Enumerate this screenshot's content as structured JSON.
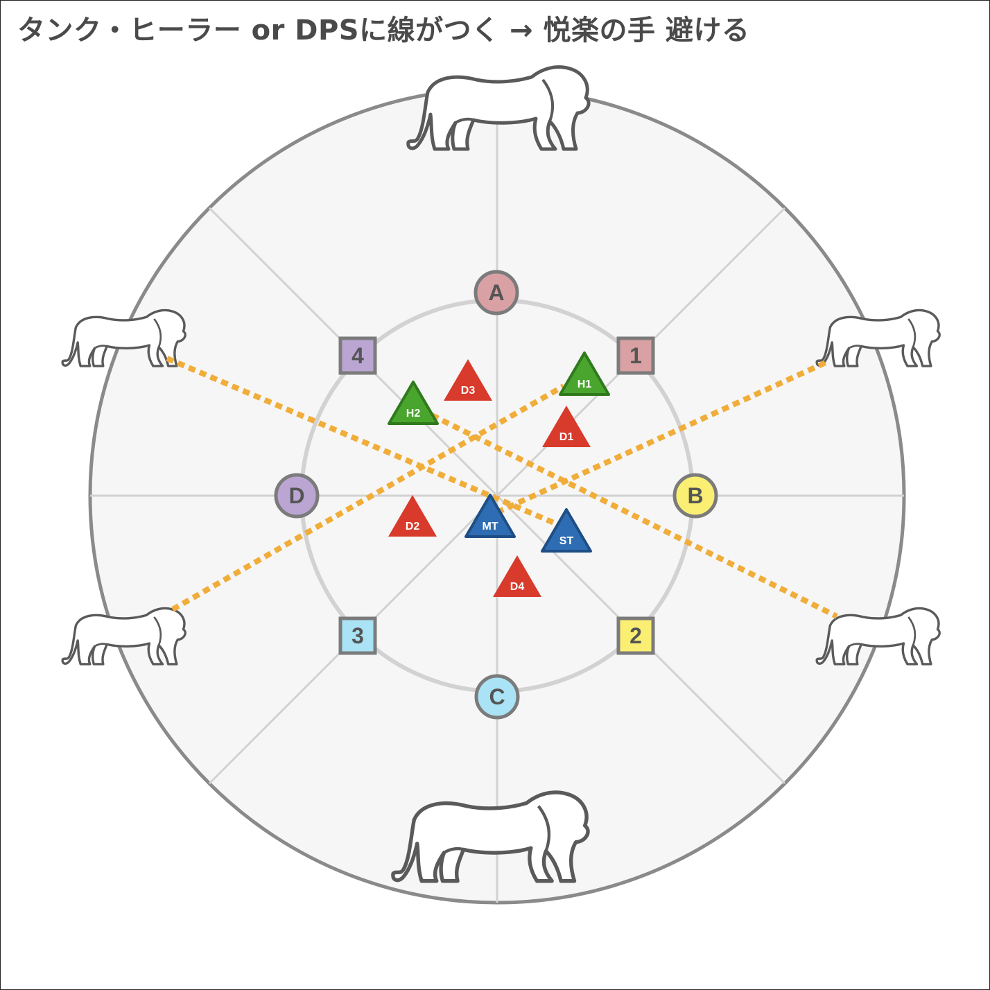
{
  "title": "タンク・ヒーラー or DPSに線がつく → 悦楽の手 避ける",
  "colors": {
    "tether": "#f0ad3a",
    "dps": "#d83a2b",
    "healer": "#4aa52e",
    "tank": "#2e6db3",
    "arena_fill": "#f6f6f6",
    "arena_border": "#8a8a8a"
  },
  "waymarks": {
    "A": {
      "label": "A",
      "shape": "circle",
      "fill": "#d9a1a3"
    },
    "B": {
      "label": "B",
      "shape": "circle",
      "fill": "#fbef73"
    },
    "C": {
      "label": "C",
      "shape": "circle",
      "fill": "#a9e3f5"
    },
    "D": {
      "label": "D",
      "shape": "circle",
      "fill": "#bba6d3"
    },
    "1": {
      "label": "1",
      "shape": "square",
      "fill": "#d9a1a3"
    },
    "2": {
      "label": "2",
      "shape": "square",
      "fill": "#fbef73"
    },
    "3": {
      "label": "3",
      "shape": "square",
      "fill": "#a9e3f5"
    },
    "4": {
      "label": "4",
      "shape": "square",
      "fill": "#bba6d3"
    }
  },
  "players": [
    {
      "label": "D3",
      "role": "dps"
    },
    {
      "label": "H1",
      "role": "healer"
    },
    {
      "label": "H2",
      "role": "healer"
    },
    {
      "label": "D1",
      "role": "dps"
    },
    {
      "label": "D2",
      "role": "dps"
    },
    {
      "label": "MT",
      "role": "tank"
    },
    {
      "label": "ST",
      "role": "tank"
    },
    {
      "label": "D4",
      "role": "dps"
    }
  ],
  "lions": [
    {
      "icon": "lion-icon",
      "position": "top"
    },
    {
      "icon": "lion-icon",
      "position": "bottom"
    },
    {
      "icon": "lion-icon",
      "position": "upper-left"
    },
    {
      "icon": "lion-icon",
      "position": "lower-left"
    },
    {
      "icon": "lion-icon",
      "position": "upper-right"
    },
    {
      "icon": "lion-icon",
      "position": "lower-right"
    }
  ],
  "tethers": [
    {
      "from": "upper-left-lion",
      "to": "ST"
    },
    {
      "from": "H2",
      "to": "lower-right-lion"
    },
    {
      "from": "lower-left-lion",
      "to": "H1"
    },
    {
      "from": "MT",
      "to": "upper-right-lion"
    }
  ]
}
